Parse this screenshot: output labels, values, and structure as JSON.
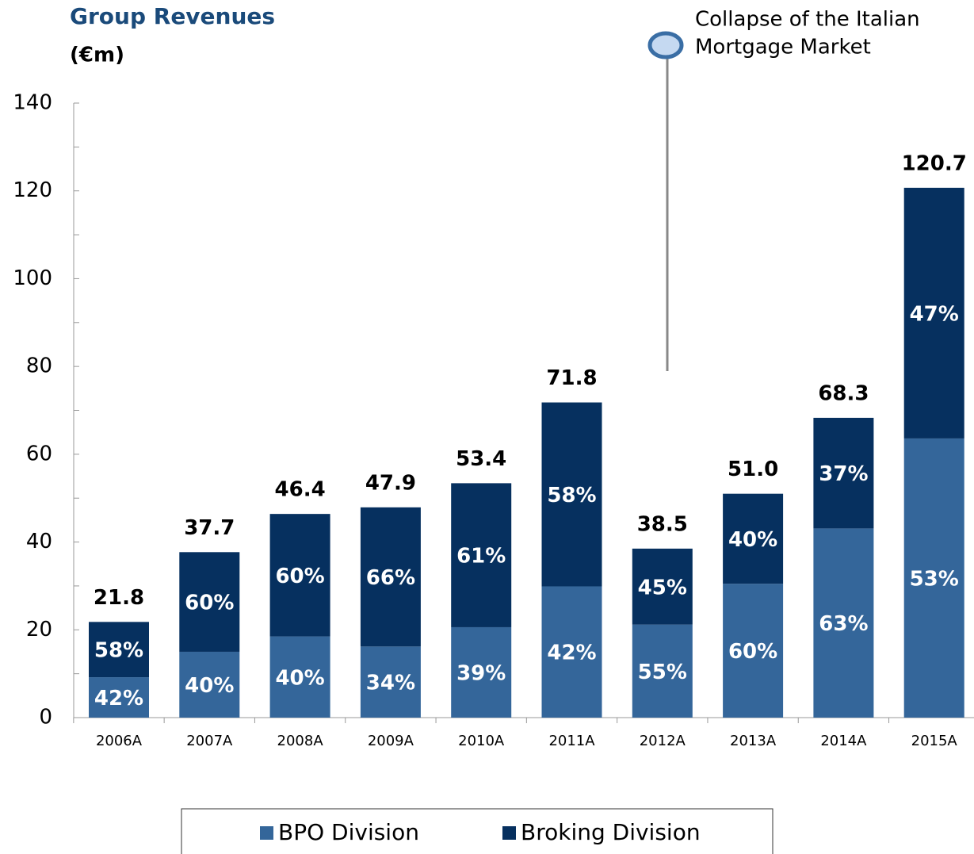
{
  "chart_data": {
    "type": "stacked_bar",
    "title": "Group Revenues",
    "subtitle": "(€m)",
    "annotation": [
      "Collapse of the Italian",
      "Mortgage Market"
    ],
    "categories": [
      "2006A",
      "2007A",
      "2008A",
      "2009A",
      "2010A",
      "2011A",
      "2012A",
      "2013A",
      "2014A",
      "2015A"
    ],
    "series": [
      {
        "name": "BPO Division",
        "color": "#34669a",
        "values": [
          9.2,
          15.0,
          18.5,
          16.2,
          20.6,
          29.9,
          21.2,
          30.5,
          43.1,
          63.6
        ],
        "share_labels": [
          "42%",
          "40%",
          "40%",
          "34%",
          "39%",
          "42%",
          "55%",
          "60%",
          "63%",
          "53%"
        ]
      },
      {
        "name": "Broking Division",
        "color": "#06305f",
        "values": [
          12.6,
          22.7,
          27.9,
          31.7,
          32.8,
          41.9,
          17.3,
          20.5,
          25.2,
          57.1
        ],
        "share_labels": [
          "58%",
          "60%",
          "60%",
          "66%",
          "61%",
          "58%",
          "45%",
          "40%",
          "37%",
          "47%"
        ]
      }
    ],
    "total_labels": [
      "21.8",
      "37.7",
      "46.4",
      "47.9",
      "53.4",
      "71.8",
      "38.5",
      "51.0",
      "68.3",
      "120.7"
    ],
    "ylim": [
      0,
      140
    ],
    "yticks": [
      0,
      20,
      40,
      60,
      80,
      100,
      120,
      140
    ],
    "legend": "bottom"
  }
}
